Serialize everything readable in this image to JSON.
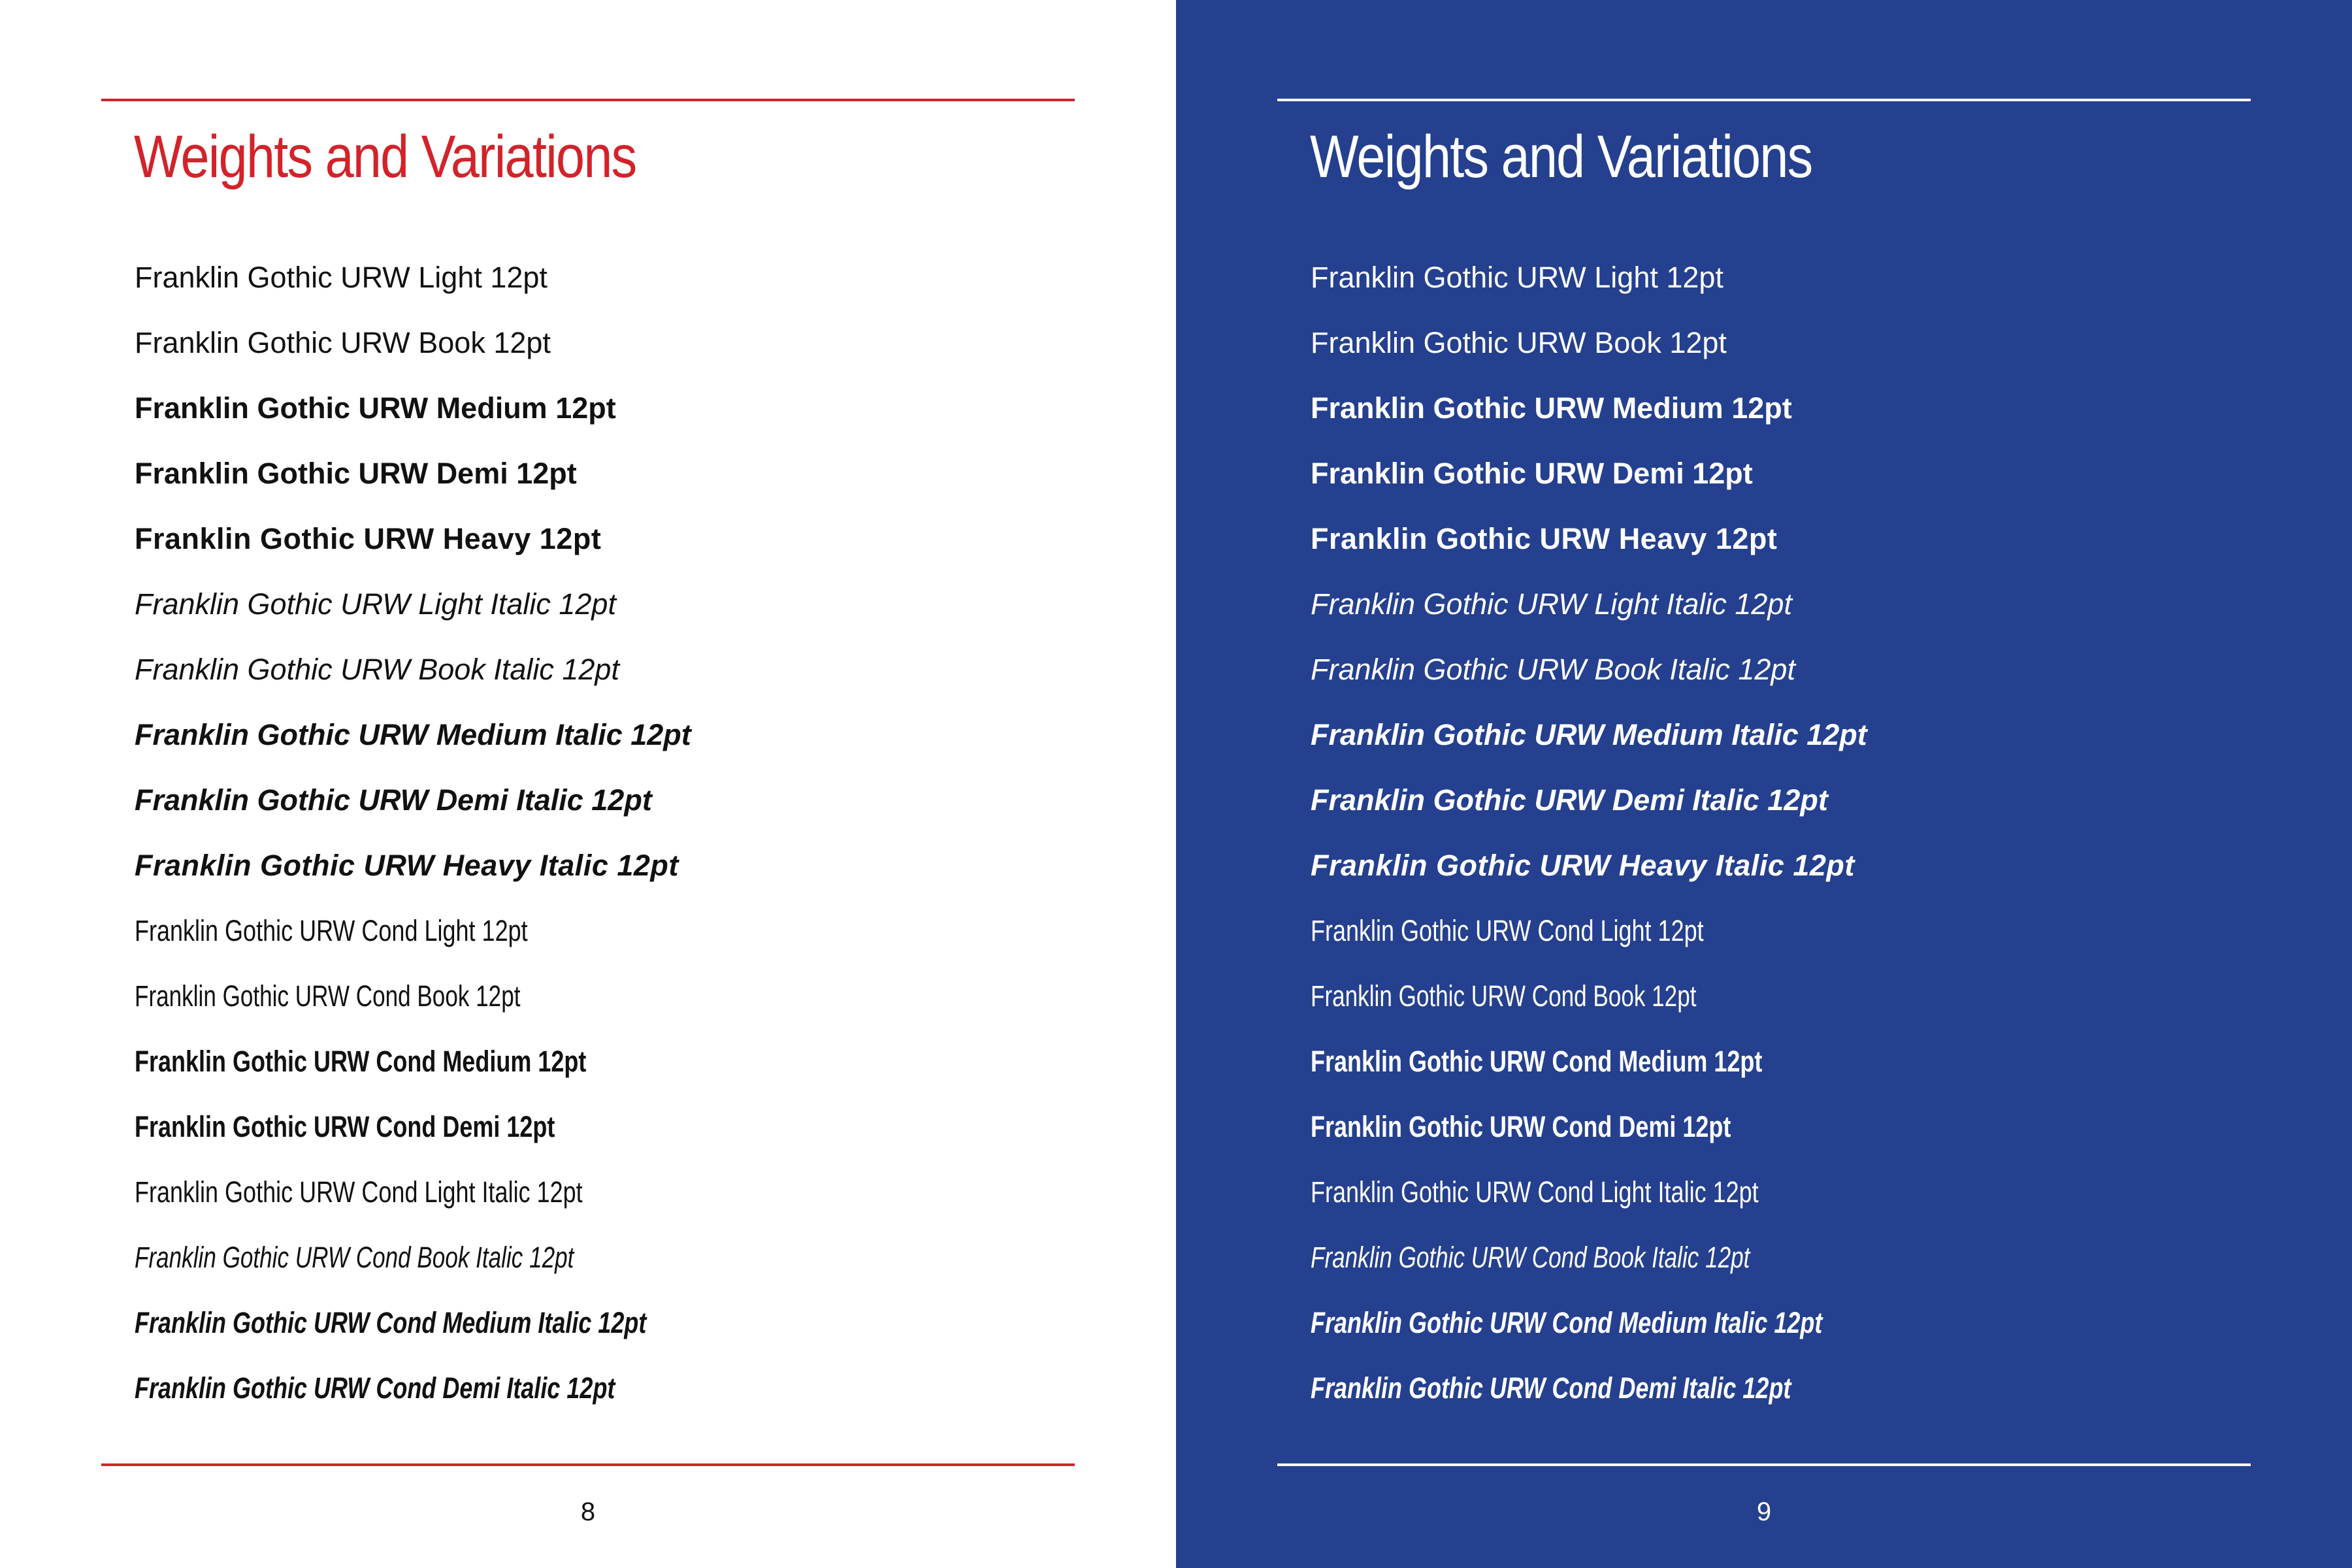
{
  "colors": {
    "left_background": "#ffffff",
    "left_accent": "#d2232a",
    "left_text": "#111111",
    "right_background": "#24408e",
    "right_accent": "#ffffff",
    "right_text": "#ffffff"
  },
  "left_page": {
    "title": "Weights and Variations",
    "specimens": [
      "Franklin Gothic URW Light 12pt",
      "Franklin Gothic URW Book 12pt",
      "Franklin Gothic URW Medium 12pt",
      "Franklin Gothic URW Demi 12pt",
      "Franklin Gothic URW Heavy 12pt",
      "Franklin Gothic URW Light Italic 12pt",
      "Franklin Gothic URW Book Italic 12pt",
      "Franklin Gothic URW Medium Italic 12pt",
      "Franklin Gothic URW Demi Italic 12pt",
      "Franklin Gothic URW Heavy Italic 12pt",
      "Franklin Gothic URW Cond Light 12pt",
      "Franklin Gothic URW Cond Book 12pt",
      "Franklin Gothic URW Cond Medium 12pt",
      "Franklin Gothic URW Cond Demi 12pt",
      "Franklin Gothic URW Cond Light Italic 12pt",
      "Franklin Gothic URW Cond Book Italic 12pt",
      "Franklin Gothic URW Cond Medium Italic 12pt",
      "Franklin Gothic URW Cond Demi Italic 12pt"
    ],
    "page_number": "8"
  },
  "right_page": {
    "title": "Weights and Variations",
    "specimens": [
      "Franklin Gothic URW Light 12pt",
      "Franklin Gothic URW Book 12pt",
      "Franklin Gothic URW Medium 12pt",
      "Franklin Gothic URW Demi 12pt",
      "Franklin Gothic URW Heavy 12pt",
      "Franklin Gothic URW Light Italic 12pt",
      "Franklin Gothic URW Book Italic 12pt",
      "Franklin Gothic URW Medium Italic 12pt",
      "Franklin Gothic URW Demi Italic 12pt",
      "Franklin Gothic URW Heavy Italic 12pt",
      "Franklin Gothic URW Cond Light 12pt",
      "Franklin Gothic URW Cond Book 12pt",
      "Franklin Gothic URW Cond Medium 12pt",
      "Franklin Gothic URW Cond Demi 12pt",
      "Franklin Gothic URW Cond Light Italic 12pt",
      "Franklin Gothic URW Cond Book Italic 12pt",
      "Franklin Gothic URW Cond Medium Italic 12pt",
      "Franklin Gothic URW Cond Demi Italic 12pt"
    ],
    "page_number": "9"
  }
}
